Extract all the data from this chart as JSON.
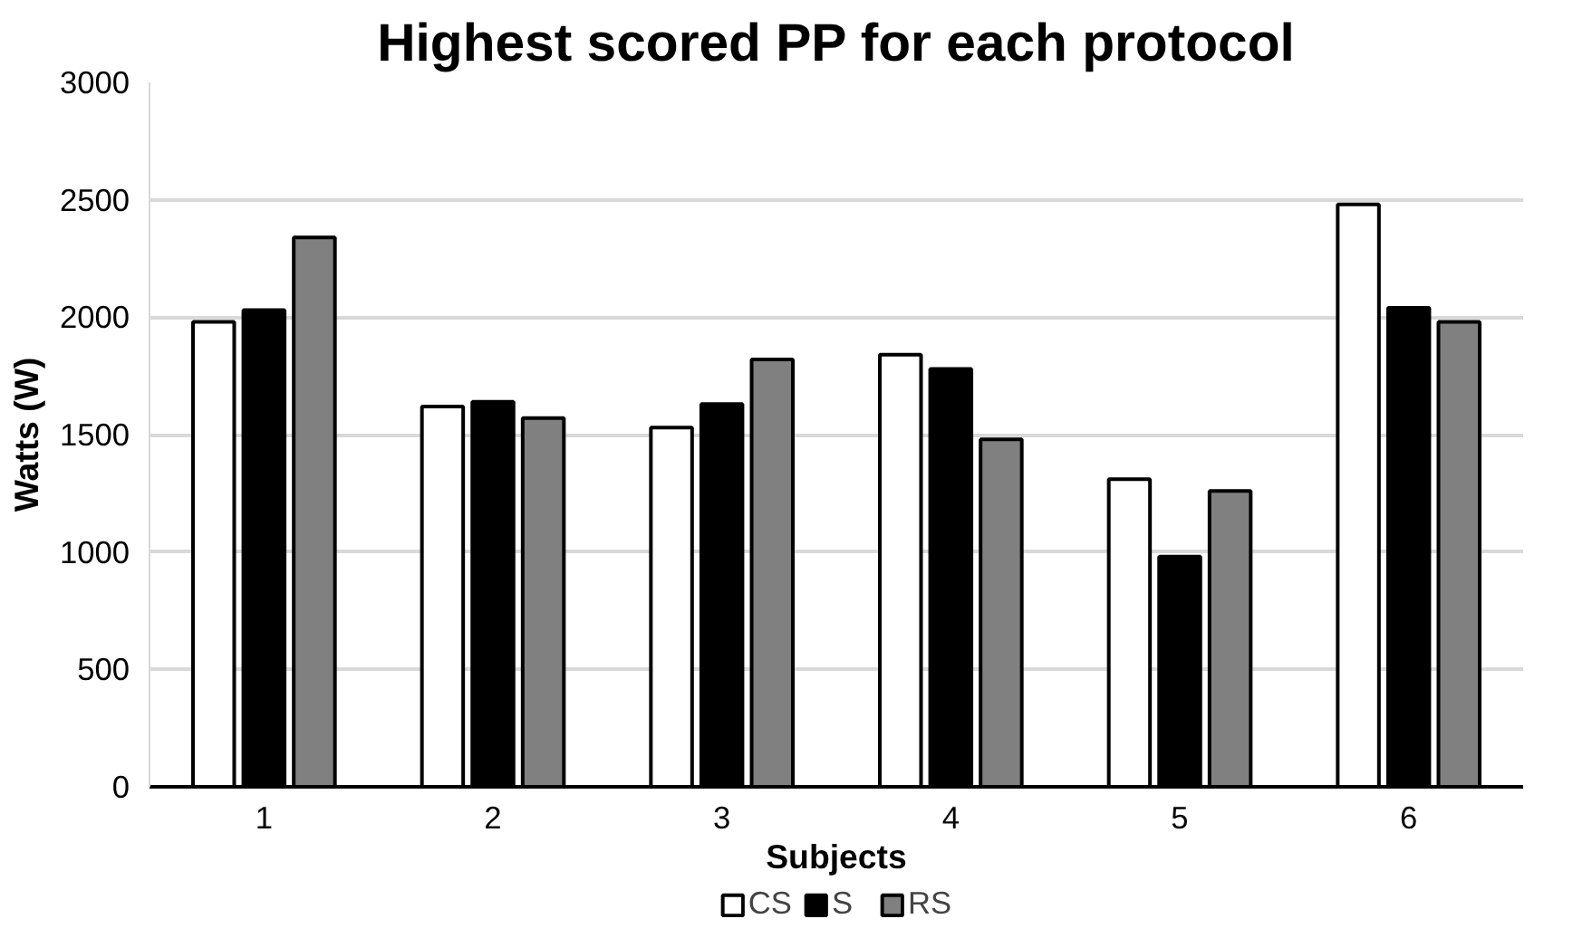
{
  "chart_data": {
    "type": "bar",
    "title": "Highest scored PP for each protocol",
    "xlabel": "Subjects",
    "ylabel": "Watts (W)",
    "categories": [
      "1",
      "2",
      "3",
      "4",
      "5",
      "6"
    ],
    "series": [
      {
        "name": "CS",
        "color": "#ffffff",
        "values": [
          1980,
          1620,
          1530,
          1840,
          1310,
          2480
        ]
      },
      {
        "name": "S",
        "color": "#000000",
        "values": [
          2030,
          1640,
          1630,
          1780,
          980,
          2040
        ]
      },
      {
        "name": "RS",
        "color": "#808080",
        "values": [
          2340,
          1570,
          1820,
          1480,
          1260,
          1980
        ]
      }
    ],
    "ylim": [
      0,
      3000
    ],
    "yticks": [
      0,
      500,
      1000,
      1500,
      2000,
      2500,
      3000
    ],
    "grid": "y",
    "legend": "bottom"
  }
}
